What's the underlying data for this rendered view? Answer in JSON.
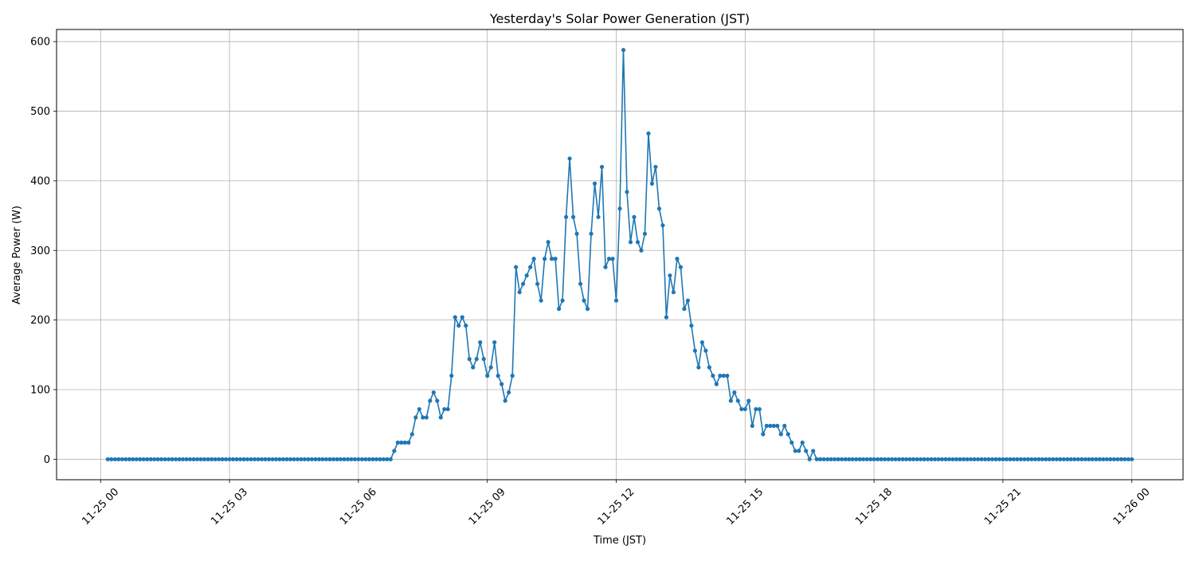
{
  "chart_data": {
    "type": "line",
    "title": "Yesterday's Solar Power Generation (JST)",
    "xlabel": "Time (JST)",
    "ylabel": "Average Power (W)",
    "x_ticks": [
      "11-25 00",
      "11-25 03",
      "11-25 06",
      "11-25 09",
      "11-25 12",
      "11-25 15",
      "11-25 18",
      "11-25 21",
      "11-26 00"
    ],
    "y_ticks": [
      0,
      100,
      200,
      300,
      400,
      500,
      600
    ],
    "ylim": [
      -29.4,
      617.4
    ],
    "grid": true,
    "marker": "circle",
    "color": "#1f77b4",
    "series": [
      {
        "x": [
          "11-25 00:10",
          "11-25 00:15",
          "11-25 00:20",
          "11-25 00:25",
          "11-25 00:30",
          "11-25 00:35",
          "11-25 00:40",
          "11-25 00:45",
          "11-25 00:50",
          "11-25 00:55",
          "11-25 01:00",
          "11-25 01:05",
          "11-25 01:10",
          "11-25 01:15",
          "11-25 01:20",
          "11-25 01:25",
          "11-25 01:30",
          "11-25 01:35",
          "11-25 01:40",
          "11-25 01:45",
          "11-25 01:50",
          "11-25 01:55",
          "11-25 02:00",
          "11-25 02:05",
          "11-25 02:10",
          "11-25 02:15",
          "11-25 02:20",
          "11-25 02:25",
          "11-25 02:30",
          "11-25 02:35",
          "11-25 02:40",
          "11-25 02:45",
          "11-25 02:50",
          "11-25 02:55",
          "11-25 03:00",
          "11-25 03:05",
          "11-25 03:10",
          "11-25 03:15",
          "11-25 03:20",
          "11-25 03:25",
          "11-25 03:30",
          "11-25 03:35",
          "11-25 03:40",
          "11-25 03:45",
          "11-25 03:50",
          "11-25 03:55",
          "11-25 04:00",
          "11-25 04:05",
          "11-25 04:10",
          "11-25 04:15",
          "11-25 04:20",
          "11-25 04:25",
          "11-25 04:30",
          "11-25 04:35",
          "11-25 04:40",
          "11-25 04:45",
          "11-25 04:50",
          "11-25 04:55",
          "11-25 05:00",
          "11-25 05:05",
          "11-25 05:10",
          "11-25 05:15",
          "11-25 05:20",
          "11-25 05:25",
          "11-25 05:30",
          "11-25 05:35",
          "11-25 05:40",
          "11-25 05:45",
          "11-25 05:50",
          "11-25 05:55",
          "11-25 06:00",
          "11-25 06:05",
          "11-25 06:10",
          "11-25 06:15",
          "11-25 06:20",
          "11-25 06:25",
          "11-25 06:30",
          "11-25 06:35",
          "11-25 06:40",
          "11-25 06:45",
          "11-25 06:50",
          "11-25 06:55",
          "11-25 07:00",
          "11-25 07:05",
          "11-25 07:10",
          "11-25 07:15",
          "11-25 07:20",
          "11-25 07:25",
          "11-25 07:30",
          "11-25 07:35",
          "11-25 07:40",
          "11-25 07:45",
          "11-25 07:50",
          "11-25 07:55",
          "11-25 08:00",
          "11-25 08:05",
          "11-25 08:10",
          "11-25 08:15",
          "11-25 08:20",
          "11-25 08:25",
          "11-25 08:30",
          "11-25 08:35",
          "11-25 08:40",
          "11-25 08:45",
          "11-25 08:50",
          "11-25 08:55",
          "11-25 09:00",
          "11-25 09:05",
          "11-25 09:10",
          "11-25 09:15",
          "11-25 09:20",
          "11-25 09:25",
          "11-25 09:30",
          "11-25 09:35",
          "11-25 09:40",
          "11-25 09:45",
          "11-25 09:50",
          "11-25 09:55",
          "11-25 10:00",
          "11-25 10:05",
          "11-25 10:10",
          "11-25 10:15",
          "11-25 10:20",
          "11-25 10:25",
          "11-25 10:30",
          "11-25 10:35",
          "11-25 10:40",
          "11-25 10:45",
          "11-25 10:50",
          "11-25 10:55",
          "11-25 11:00",
          "11-25 11:05",
          "11-25 11:10",
          "11-25 11:15",
          "11-25 11:20",
          "11-25 11:25",
          "11-25 11:30",
          "11-25 11:35",
          "11-25 11:40",
          "11-25 11:45",
          "11-25 11:50",
          "11-25 11:55",
          "11-25 12:00",
          "11-25 12:05",
          "11-25 12:10",
          "11-25 12:15",
          "11-25 12:20",
          "11-25 12:25",
          "11-25 12:30",
          "11-25 12:35",
          "11-25 12:40",
          "11-25 12:45",
          "11-25 12:50",
          "11-25 12:55",
          "11-25 13:00",
          "11-25 13:05",
          "11-25 13:10",
          "11-25 13:15",
          "11-25 13:20",
          "11-25 13:25",
          "11-25 13:30",
          "11-25 13:35",
          "11-25 13:40",
          "11-25 13:45",
          "11-25 13:50",
          "11-25 13:55",
          "11-25 14:00",
          "11-25 14:05",
          "11-25 14:10",
          "11-25 14:15",
          "11-25 14:20",
          "11-25 14:25",
          "11-25 14:30",
          "11-25 14:35",
          "11-25 14:40",
          "11-25 14:45",
          "11-25 14:50",
          "11-25 14:55",
          "11-25 15:00",
          "11-25 15:05",
          "11-25 15:10",
          "11-25 15:15",
          "11-25 15:20",
          "11-25 15:25",
          "11-25 15:30",
          "11-25 15:35",
          "11-25 15:40",
          "11-25 15:45",
          "11-25 15:50",
          "11-25 15:55",
          "11-25 16:00",
          "11-25 16:05",
          "11-25 16:10",
          "11-25 16:15",
          "11-25 16:20",
          "11-25 16:25",
          "11-25 16:30",
          "11-25 16:35",
          "11-25 16:40",
          "11-25 16:45",
          "11-25 16:50",
          "11-25 16:55",
          "11-25 17:00",
          "11-25 17:05",
          "11-25 17:10",
          "11-25 17:15",
          "11-25 17:20",
          "11-25 17:25",
          "11-25 17:30",
          "11-25 17:35",
          "11-25 17:40",
          "11-25 17:45",
          "11-25 17:50",
          "11-25 17:55",
          "11-25 18:00",
          "11-25 18:05",
          "11-25 18:10",
          "11-25 18:15",
          "11-25 18:20",
          "11-25 18:25",
          "11-25 18:30",
          "11-25 18:35",
          "11-25 18:40",
          "11-25 18:45",
          "11-25 18:50",
          "11-25 18:55",
          "11-25 19:00",
          "11-25 19:05",
          "11-25 19:10",
          "11-25 19:15",
          "11-25 19:20",
          "11-25 19:25",
          "11-25 19:30",
          "11-25 19:35",
          "11-25 19:40",
          "11-25 19:45",
          "11-25 19:50",
          "11-25 19:55",
          "11-25 20:00",
          "11-25 20:05",
          "11-25 20:10",
          "11-25 20:15",
          "11-25 20:20",
          "11-25 20:25",
          "11-25 20:30",
          "11-25 20:35",
          "11-25 20:40",
          "11-25 20:45",
          "11-25 20:50",
          "11-25 20:55",
          "11-25 21:00",
          "11-25 21:05",
          "11-25 21:10",
          "11-25 21:15",
          "11-25 21:20",
          "11-25 21:25",
          "11-25 21:30",
          "11-25 21:35",
          "11-25 21:40",
          "11-25 21:45",
          "11-25 21:50",
          "11-25 21:55",
          "11-25 22:00",
          "11-25 22:05",
          "11-25 22:10",
          "11-25 22:15",
          "11-25 22:20",
          "11-25 22:25",
          "11-25 22:30",
          "11-25 22:35",
          "11-25 22:40",
          "11-25 22:45",
          "11-25 22:50",
          "11-25 22:55",
          "11-25 23:00",
          "11-25 23:05",
          "11-25 23:10",
          "11-25 23:15",
          "11-25 23:20",
          "11-25 23:25",
          "11-25 23:30",
          "11-25 23:35",
          "11-25 23:40",
          "11-25 23:45",
          "11-25 23:50",
          "11-25 23:55",
          "11-26 00:00"
        ],
        "y": [
          0,
          0,
          0,
          0,
          0,
          0,
          0,
          0,
          0,
          0,
          0,
          0,
          0,
          0,
          0,
          0,
          0,
          0,
          0,
          0,
          0,
          0,
          0,
          0,
          0,
          0,
          0,
          0,
          0,
          0,
          0,
          0,
          0,
          0,
          0,
          0,
          0,
          0,
          0,
          0,
          0,
          0,
          0,
          0,
          0,
          0,
          0,
          0,
          0,
          0,
          0,
          0,
          0,
          0,
          0,
          0,
          0,
          0,
          0,
          0,
          0,
          0,
          0,
          0,
          0,
          0,
          0,
          0,
          0,
          0,
          0,
          0,
          0,
          0,
          0,
          0,
          0,
          0,
          0,
          0,
          12,
          24,
          24,
          24,
          24,
          36,
          60,
          72,
          60,
          60,
          84,
          96,
          84,
          60,
          72,
          72,
          120,
          204,
          192,
          204,
          192,
          144,
          132,
          144,
          168,
          144,
          120,
          132,
          168,
          120,
          108,
          84,
          96,
          120,
          276,
          240,
          252,
          264,
          276,
          288,
          252,
          228,
          288,
          312,
          288,
          288,
          216,
          228,
          348,
          432,
          348,
          324,
          252,
          228,
          216,
          324,
          396,
          348,
          420,
          276,
          288,
          288,
          228,
          360,
          588,
          384,
          312,
          348,
          312,
          300,
          324,
          468,
          396,
          420,
          360,
          336,
          204,
          264,
          240,
          288,
          276,
          216,
          228,
          192,
          156,
          132,
          168,
          156,
          132,
          120,
          108,
          120,
          120,
          120,
          84,
          96,
          84,
          72,
          72,
          84,
          48,
          72,
          72,
          36,
          48,
          48,
          48,
          48,
          36,
          48,
          36,
          24,
          12,
          12,
          24,
          12,
          0,
          12,
          0,
          0,
          0,
          0,
          0,
          0,
          0,
          0,
          0,
          0,
          0,
          0,
          0,
          0,
          0,
          0,
          0,
          0,
          0,
          0,
          0,
          0,
          0,
          0,
          0,
          0,
          0,
          0,
          0,
          0,
          0,
          0,
          0,
          0,
          0,
          0,
          0,
          0,
          0,
          0,
          0,
          0,
          0,
          0,
          0,
          0,
          0,
          0,
          0,
          0,
          0,
          0,
          0,
          0,
          0,
          0,
          0,
          0,
          0,
          0,
          0,
          0,
          0,
          0,
          0,
          0,
          0,
          0,
          0,
          0,
          0,
          0,
          0,
          0,
          0,
          0,
          0,
          0,
          0,
          0,
          0,
          0,
          0,
          0,
          0,
          0,
          0,
          0,
          0
        ]
      }
    ]
  }
}
